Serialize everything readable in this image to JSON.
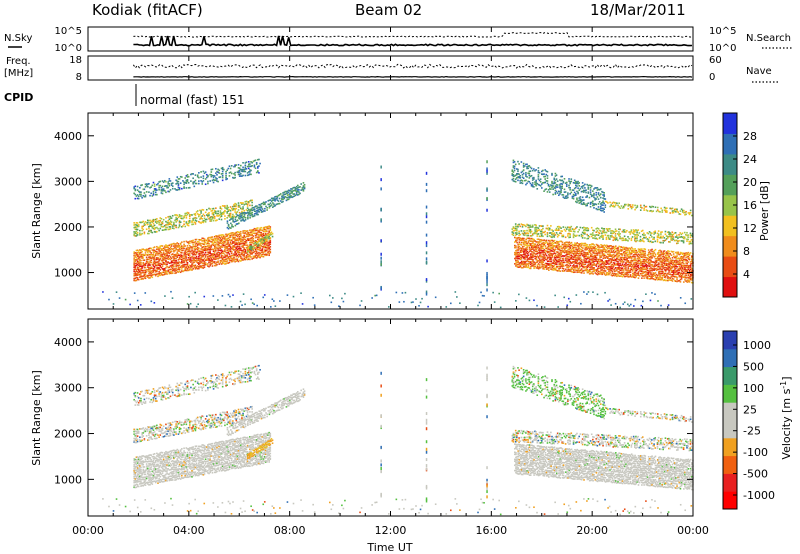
{
  "header": {
    "station": "Kodiak (fitACF)",
    "beam": "Beam 02",
    "date": "18/Mar/2011"
  },
  "strips": {
    "nsky_label": "N.Sky",
    "nsky_ticks": [
      "10^5",
      "10^0"
    ],
    "nsearch_label": "N.Search",
    "nsearch_ticks": [
      "10^5",
      "10^0"
    ],
    "freq_label_1": "Freq.",
    "freq_label_2": "[MHz]",
    "freq_ticks": [
      "18",
      "8"
    ],
    "nave_label": "Nave",
    "nave_ticks": [
      "60",
      "0"
    ],
    "cpid_label": "CPID",
    "cpid_value": "normal (fast) 151"
  },
  "chart_data": [
    {
      "type": "heatmap",
      "name": "power-panel",
      "ylabel": "Slant Range [km]",
      "ylim": [
        200,
        4500
      ],
      "yticks": [
        1000,
        2000,
        3000,
        4000
      ],
      "colorbar": {
        "label": "Power [dB]",
        "range": [
          0,
          32
        ],
        "ticks": [
          4,
          8,
          12,
          16,
          20,
          24,
          28
        ],
        "colors": [
          "#2233dd",
          "#2f6fb5",
          "#3d8b86",
          "#54a05a",
          "#98c44a",
          "#f2c020",
          "#f08c1c",
          "#e84c14",
          "#e01010"
        ]
      }
    },
    {
      "type": "heatmap",
      "name": "velocity-panel",
      "ylabel": "Slant Range [km]",
      "ylim": [
        200,
        4500
      ],
      "yticks": [
        1000,
        2000,
        3000,
        4000
      ],
      "colorbar": {
        "label": "Velocity [m s-1]",
        "ticks": [
          "1000",
          "500",
          "100",
          "25",
          "-25",
          "-100",
          "-500",
          "-1000"
        ],
        "colors": [
          "#2a3fb0",
          "#2f6fb5",
          "#3a9a6a",
          "#55c040",
          "#c8c8c0",
          "#c8c8c0",
          "#f0a020",
          "#f06010",
          "#e82020",
          "#ff0000"
        ]
      }
    }
  ],
  "xaxis": {
    "label": "Time UT",
    "ticks": [
      "00:00",
      "04:00",
      "08:00",
      "12:00",
      "16:00",
      "20:00",
      "00:00"
    ]
  },
  "colors": {
    "axis": "#000000",
    "gray_scatter": "#c8c8c0"
  }
}
